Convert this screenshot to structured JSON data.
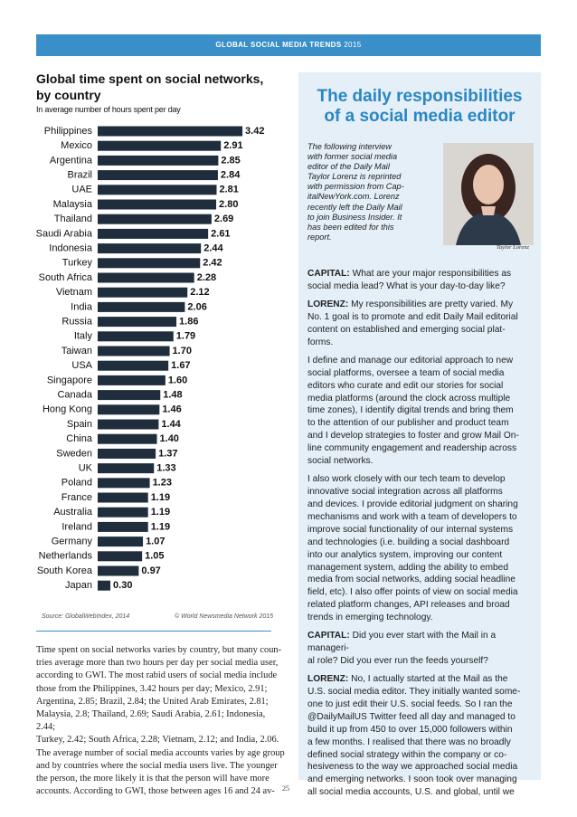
{
  "header": {
    "title": "GLOBAL SOCIAL MEDIA TRENDS",
    "year": "2015"
  },
  "chart_data": {
    "type": "bar",
    "orientation": "horizontal",
    "title": "Global time spent on social networks, by country",
    "subtitle": "In average number of hours spent per day",
    "categories": [
      "Philippines",
      "Mexico",
      "Argentina",
      "Brazil",
      "UAE",
      "Malaysia",
      "Thailand",
      "Saudi Arabia",
      "Indonesia",
      "Turkey",
      "South Africa",
      "Vietnam",
      "India",
      "Russia",
      "Italy",
      "Taiwan",
      "USA",
      "Singapore",
      "Canada",
      "Hong Kong",
      "Spain",
      "China",
      "Sweden",
      "UK",
      "Poland",
      "France",
      "Australia",
      "Ireland",
      "Germany",
      "Netherlands",
      "South Korea",
      "Japan"
    ],
    "values": [
      3.42,
      2.91,
      2.85,
      2.84,
      2.81,
      2.8,
      2.69,
      2.61,
      2.44,
      2.42,
      2.28,
      2.12,
      2.06,
      1.86,
      1.79,
      1.7,
      1.67,
      1.6,
      1.48,
      1.46,
      1.44,
      1.4,
      1.37,
      1.33,
      1.23,
      1.19,
      1.19,
      1.19,
      1.07,
      1.05,
      0.97,
      0.3
    ],
    "value_labels": [
      "3.42",
      "2.91",
      "2.85",
      "2.84",
      "2.81",
      "2.80",
      "2.69",
      "2.61",
      "2.44",
      "2.42",
      "2.28",
      "2.12",
      "2.06",
      "1.86",
      "1.79",
      "1.70",
      "1.67",
      "1.60",
      "1.48",
      "1.46",
      "1.44",
      "1.40",
      "1.37",
      "1.33",
      "1.23",
      "1.19",
      "1.19",
      "1.19",
      "1.07",
      "1.05",
      "0.97",
      "0.30"
    ],
    "color": "#1f2d3d",
    "source": "Source: GlobalWebIndex, 2014",
    "copyright": "© World Newsmedia Network 2015"
  },
  "article": {
    "lines": [
      "Time spent on social networks varies by country, but many coun-",
      "tries average more than two hours per day per social media user,",
      "according to GWI. The most rabid users of social media include",
      "those from the Philippines, 3.42 hours per day; Mexico, 2.91;",
      "Argentina, 2.85; Brazil, 2.84; the United Arab Emirates, 2.81;",
      "Malaysia, 2.8; Thailand, 2.69; Saudi Arabia, 2.61; Indonesia, 2.44;",
      "Turkey, 2.42; South Africa, 2.28; Vietnam, 2.12; and India, 2.06.",
      "The average number of social media accounts varies by age group",
      "and by countries where the social media users live. The younger",
      "the person, the more likely it is that the person will have more",
      "accounts. According to GWI, those between ages 16 and 24 av-"
    ]
  },
  "page_number": 25,
  "sidebar": {
    "title_lines": [
      "The daily responsibilities",
      "of a social media editor"
    ],
    "intro_lines": [
      "The following interview",
      "with former social media",
      "editor of the Daily Mail",
      "Taylor Lorenz is reprinted",
      "with permission from Cap-",
      "italNewYork.com. Lorenz",
      "recently left the Daily Mail",
      "to join Business Insider. It",
      "has been edited for this",
      "report."
    ],
    "photo_caption": "Taylor Lorenz",
    "paragraphs": [
      {
        "label": "CAPITAL:",
        "lines": [
          "What are your major responsibilities as",
          "social media lead? What is your day-to-day like?"
        ]
      },
      {
        "label": "LORENZ:",
        "lines": [
          "My responsibilities are pretty varied. My",
          "No. 1 goal is to promote and edit Daily Mail editorial",
          "content on established and emerging social plat-",
          "forms."
        ]
      },
      {
        "lines": [
          "I define and manage our editorial approach to new",
          "social platforms, oversee a team of social media",
          "editors who curate and edit our stories for social",
          "media platforms (around the clock across multiple",
          "time zones), I identify digital trends and bring them",
          "to the attention of our publisher and product team",
          "and I develop strategies to foster and grow Mail On-",
          "line community engagement and readership across",
          "social networks."
        ]
      },
      {
        "lines": [
          "I also work closely with our tech team to develop",
          "innovative social integration across all platforms",
          "and devices. I provide editorial judgment on sharing",
          "mechanisms and work with a team of developers to",
          "improve social functionality of our internal systems",
          "and technologies (i.e. building a social dashboard",
          "into our analytics system, improving our content",
          "management system, adding the ability to embed",
          "media from social networks, adding social headline",
          "field, etc). I also offer points of view on social media",
          "related platform changes, API releases and broad",
          "trends in emerging technology."
        ]
      },
      {
        "label": "CAPITAL:",
        "lines": [
          "Did you ever start with the Mail in a manageri-",
          "al role? Did you ever run the feeds yourself?"
        ]
      },
      {
        "label": "LORENZ:",
        "lines": [
          "No, I actually started at the Mail as the",
          "U.S. social media editor. They initially wanted some-",
          "one to just edit their U.S. social feeds. So I ran the",
          "@DailyMailUS Twitter feed all day and managed to",
          "build it up from 450 to over 15,000 followers within",
          "a few months. I realised that there was no broadly",
          "defined social strategy within the company or co-",
          "hesiveness to the way we approached social media",
          "and emerging networks. I soon took over managing",
          "all social media accounts, U.S. and global, until we"
        ]
      }
    ]
  }
}
